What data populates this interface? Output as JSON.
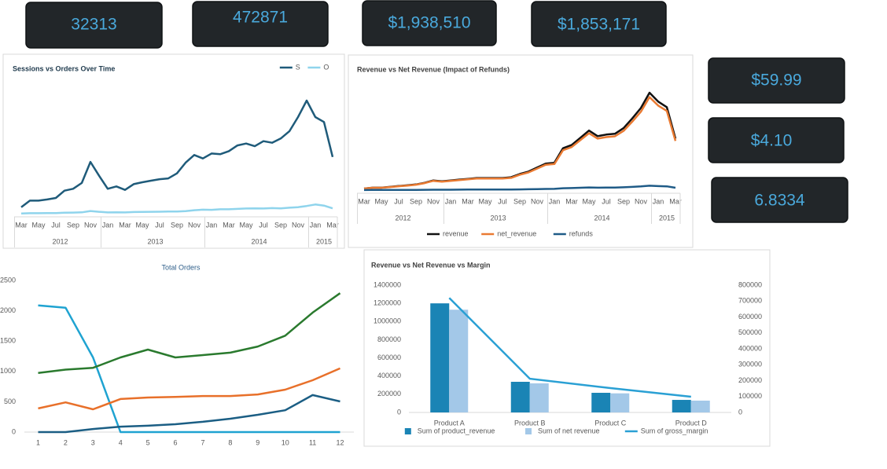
{
  "kpis": [
    "32313",
    "472871",
    "$1,938,510",
    "$1,853,171",
    "$59.99",
    "$4.10",
    "6.8334"
  ],
  "chart_data": [
    {
      "type": "line",
      "title": "Sessions vs Orders Over Time",
      "legend": "top-right",
      "categories": [
        "Mar",
        null,
        "May",
        null,
        "Jul",
        null,
        "Sep",
        null,
        "Nov",
        null,
        "Jan",
        null,
        "Mar",
        null,
        "May",
        null,
        "Jul",
        null,
        "Sep",
        null,
        "Nov",
        null,
        "Jan",
        null,
        "Mar",
        null,
        "May",
        null,
        "Jul",
        null,
        "Sep",
        null,
        "Nov",
        null,
        "Jan",
        null,
        "Mar"
      ],
      "category_groups": [
        "2012",
        null,
        null,
        null,
        null,
        null,
        null,
        null,
        null,
        null,
        "2013",
        null,
        null,
        null,
        null,
        null,
        null,
        null,
        null,
        null,
        null,
        null,
        "2014",
        null,
        null,
        null,
        null,
        null,
        null,
        null,
        null,
        null,
        null,
        null,
        "2015",
        null,
        null
      ],
      "series": [
        {
          "name": "S",
          "color": "#1f5b7a",
          "values": [
            1700,
            3400,
            3400,
            3700,
            4100,
            6000,
            6500,
            8000,
            13500,
            9900,
            6500,
            7100,
            6200,
            7700,
            8200,
            8600,
            9000,
            9200,
            10500,
            13300,
            15300,
            14400,
            15700,
            15500,
            16300,
            17800,
            18300,
            17600,
            18900,
            18500,
            19600,
            21500,
            25200,
            29500,
            25200,
            23900,
            14800
          ]
        },
        {
          "name": "O",
          "color": "#8fd4ec",
          "values": [
            60,
            120,
            130,
            150,
            170,
            250,
            280,
            350,
            700,
            500,
            330,
            360,
            320,
            420,
            480,
            490,
            520,
            560,
            580,
            650,
            900,
            1050,
            1000,
            1150,
            1150,
            1250,
            1350,
            1400,
            1350,
            1450,
            1400,
            1550,
            1700,
            2000,
            2400,
            2100,
            1400
          ]
        }
      ]
    },
    {
      "type": "line",
      "title": "Revenue vs Net Revenue (Impact of Refunds)",
      "legend": "bottom",
      "categories": [
        "Mar",
        null,
        "May",
        null,
        "Jul",
        null,
        "Sep",
        null,
        "Nov",
        null,
        "Jan",
        null,
        "Mar",
        null,
        "May",
        null,
        "Jul",
        null,
        "Sep",
        null,
        "Nov",
        null,
        "Jan",
        null,
        "Mar",
        null,
        "May",
        null,
        "Jul",
        null,
        "Sep",
        null,
        "Nov",
        null,
        "Jan",
        null,
        "Mar"
      ],
      "category_groups": [
        "2012",
        null,
        null,
        null,
        null,
        null,
        null,
        null,
        null,
        null,
        "2013",
        null,
        null,
        null,
        null,
        null,
        null,
        null,
        null,
        null,
        null,
        null,
        "2014",
        null,
        null,
        null,
        null,
        null,
        null,
        null,
        null,
        null,
        null,
        null,
        "2015",
        null,
        null
      ],
      "series": [
        {
          "name": "revenue",
          "color": "#111111",
          "values": [
            2700,
            4100,
            4100,
            5400,
            6800,
            8100,
            9500,
            12200,
            16200,
            14900,
            16200,
            17600,
            18900,
            20300,
            20300,
            20300,
            20300,
            21600,
            27000,
            31100,
            37800,
            44600,
            45900,
            70200,
            75600,
            87800,
            99900,
            90500,
            93200,
            94500,
            104000,
            120200,
            137700,
            163400,
            148500,
            139100,
            86400
          ]
        },
        {
          "name": "net_revenue",
          "color": "#e97a32",
          "values": [
            2600,
            3900,
            3900,
            5200,
            6500,
            7700,
            9100,
            11700,
            15500,
            14200,
            15500,
            16800,
            18000,
            19400,
            19400,
            19400,
            19400,
            20600,
            25800,
            29700,
            36100,
            42600,
            43800,
            67000,
            72200,
            83800,
            95400,
            86400,
            89000,
            90200,
            99300,
            114800,
            131500,
            156000,
            141800,
            132800,
            82500
          ]
        },
        {
          "name": "refunds",
          "color": "#1f5b87",
          "values": [
            100,
            200,
            200,
            200,
            300,
            400,
            400,
            500,
            700,
            700,
            700,
            800,
            900,
            900,
            900,
            900,
            900,
            1000,
            1200,
            1400,
            1700,
            2000,
            2100,
            3200,
            3400,
            4000,
            4500,
            4100,
            4200,
            4300,
            4700,
            5400,
            6200,
            7400,
            6700,
            6300,
            3900
          ]
        }
      ]
    },
    {
      "type": "line",
      "title": "Total Orders",
      "x": [
        1,
        2,
        3,
        4,
        5,
        6,
        7,
        8,
        9,
        10,
        11,
        12
      ],
      "xlim": [
        0.5,
        12.5
      ],
      "xticks": [
        1,
        2,
        3,
        4,
        5,
        6,
        7,
        8,
        9,
        10,
        11,
        12
      ],
      "ylim": [
        0,
        2500
      ],
      "yticks": [
        0,
        500,
        1000,
        1500,
        2000,
        2500
      ],
      "series": [
        {
          "color": "#1fa3d1",
          "values": [
            2090,
            2050,
            1230,
            0,
            0,
            0,
            0,
            0,
            0,
            0,
            0,
            0
          ]
        },
        {
          "color": "#2a7a2e",
          "values": [
            975,
            1030,
            1060,
            1230,
            1360,
            1230,
            1270,
            1310,
            1410,
            1590,
            1970,
            2290
          ]
        },
        {
          "color": "#e8702a",
          "values": [
            390,
            490,
            375,
            545,
            570,
            580,
            595,
            595,
            620,
            700,
            855,
            1050
          ]
        },
        {
          "color": "#1b5e84",
          "values": [
            0,
            0,
            50,
            90,
            105,
            130,
            170,
            220,
            285,
            360,
            610,
            505
          ]
        }
      ]
    },
    {
      "type": "combo",
      "title": "Revenue vs Net Revenue vs Margin",
      "legend": "bottom",
      "categories": [
        "Product A",
        "Product B",
        "Product C",
        "Product D"
      ],
      "ylim": [
        0,
        1400000
      ],
      "yticks": [
        0,
        200000,
        400000,
        600000,
        800000,
        1000000,
        1200000,
        1400000
      ],
      "y2lim": [
        0,
        800000
      ],
      "y2ticks": [
        0,
        100000,
        200000,
        300000,
        400000,
        500000,
        600000,
        700000,
        800000
      ],
      "series": [
        {
          "name": "Sum of product_revenue",
          "kind": "bar",
          "color": "#1a84b5",
          "values": [
            1200000,
            337000,
            216000,
            138000
          ]
        },
        {
          "name": "Sum of net revenue",
          "kind": "bar",
          "color": "#a3c8e8",
          "values": [
            1130000,
            320000,
            210000,
            130000
          ]
        },
        {
          "name": "Sum of gross_margin",
          "kind": "line",
          "axis": "y2",
          "color": "#2aa0d4",
          "values": [
            720000,
            212000,
            153000,
            99000
          ]
        }
      ]
    }
  ]
}
